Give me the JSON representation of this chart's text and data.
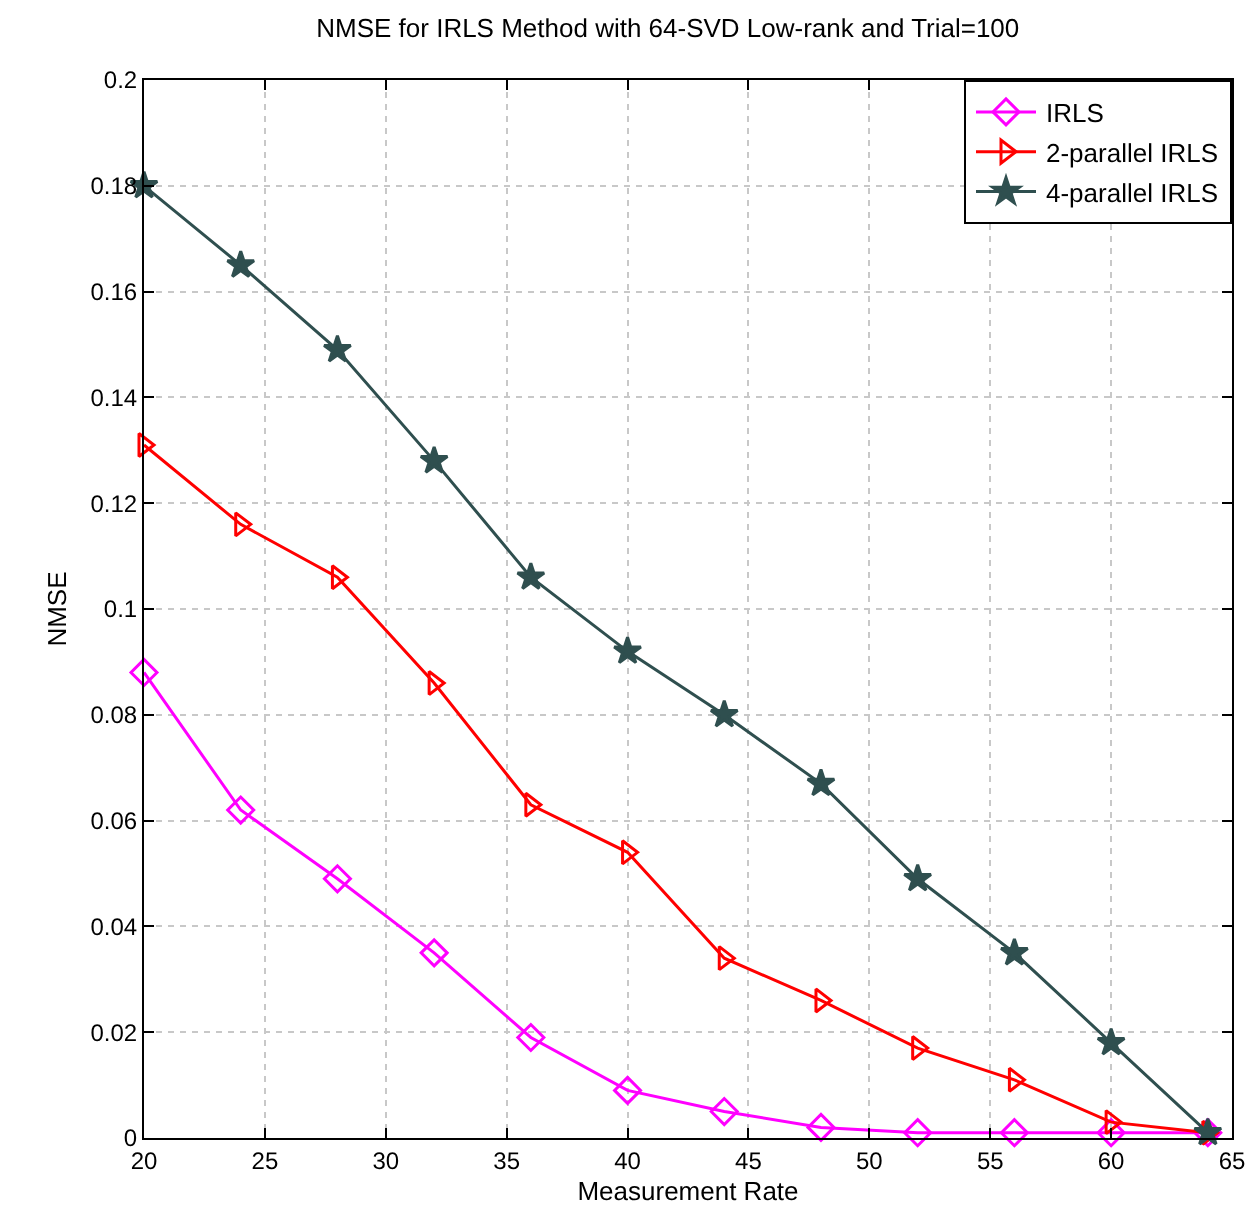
{
  "chart_data": {
    "type": "line",
    "title": "NMSE for IRLS Method with 64-SVD Low-rank and Trial=100",
    "xlabel": "Measurement Rate",
    "ylabel": "NMSE",
    "x": [
      20,
      24,
      28,
      32,
      36,
      40,
      44,
      48,
      52,
      56,
      60,
      64
    ],
    "series": [
      {
        "name": "IRLS",
        "color": "#ff00ff",
        "marker": "diamond",
        "values": [
          0.088,
          0.062,
          0.049,
          0.035,
          0.019,
          0.009,
          0.005,
          0.002,
          0.001,
          0.001,
          0.001,
          0.001
        ]
      },
      {
        "name": "2-parallel IRLS",
        "color": "#ff0000",
        "marker": "triangle",
        "values": [
          0.131,
          0.116,
          0.106,
          0.086,
          0.063,
          0.054,
          0.034,
          0.026,
          0.017,
          0.011,
          0.003,
          0.001
        ]
      },
      {
        "name": "4-parallel IRLS",
        "color": "#2f4f4f",
        "marker": "star",
        "values": [
          0.18,
          0.165,
          0.149,
          0.128,
          0.106,
          0.092,
          0.08,
          0.067,
          0.049,
          0.035,
          0.018,
          0.001
        ]
      }
    ],
    "xlim": [
      20,
      65
    ],
    "xticks": [
      20,
      25,
      30,
      35,
      40,
      45,
      50,
      55,
      60,
      65
    ],
    "ylim": [
      0,
      0.2
    ],
    "yticks": [
      0,
      0.02,
      0.04,
      0.06,
      0.08,
      0.1,
      0.12,
      0.14,
      0.16,
      0.18,
      0.2
    ],
    "grid": true,
    "legend": "top right",
    "line_style": "solid"
  }
}
